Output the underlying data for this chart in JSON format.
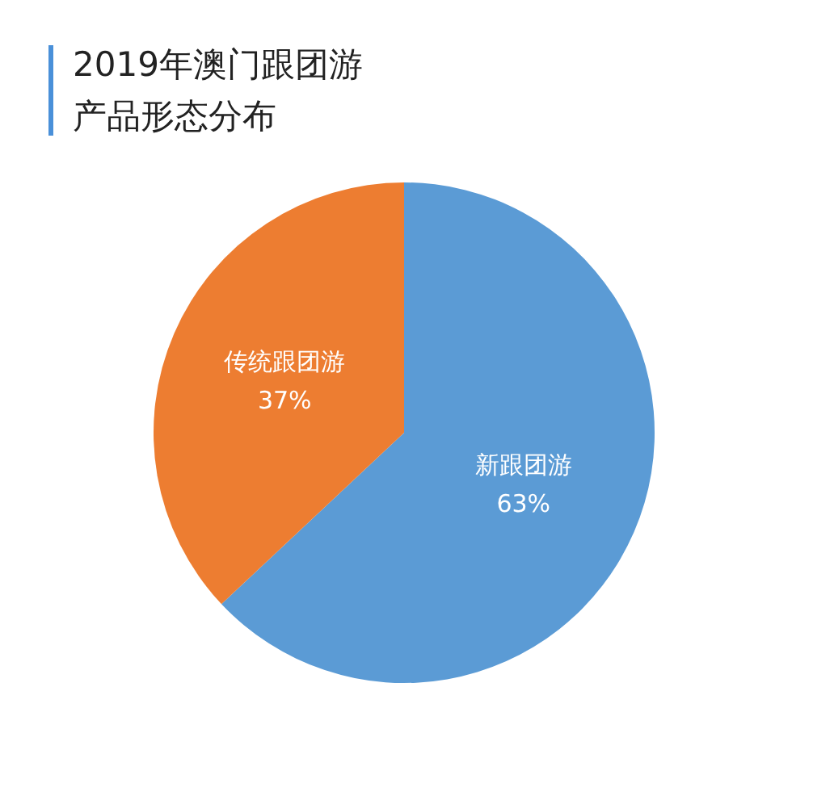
{
  "chart_data": {
    "type": "pie",
    "title": "2019年澳门跟团游",
    "subtitle": "产品形态分布",
    "categories": [
      "新跟团游",
      "传统跟团游"
    ],
    "values": [
      63,
      37
    ],
    "value_labels": [
      "63%",
      "37%"
    ],
    "colors": [
      "#5b9bd5",
      "#ed7d31"
    ],
    "legend": false
  }
}
